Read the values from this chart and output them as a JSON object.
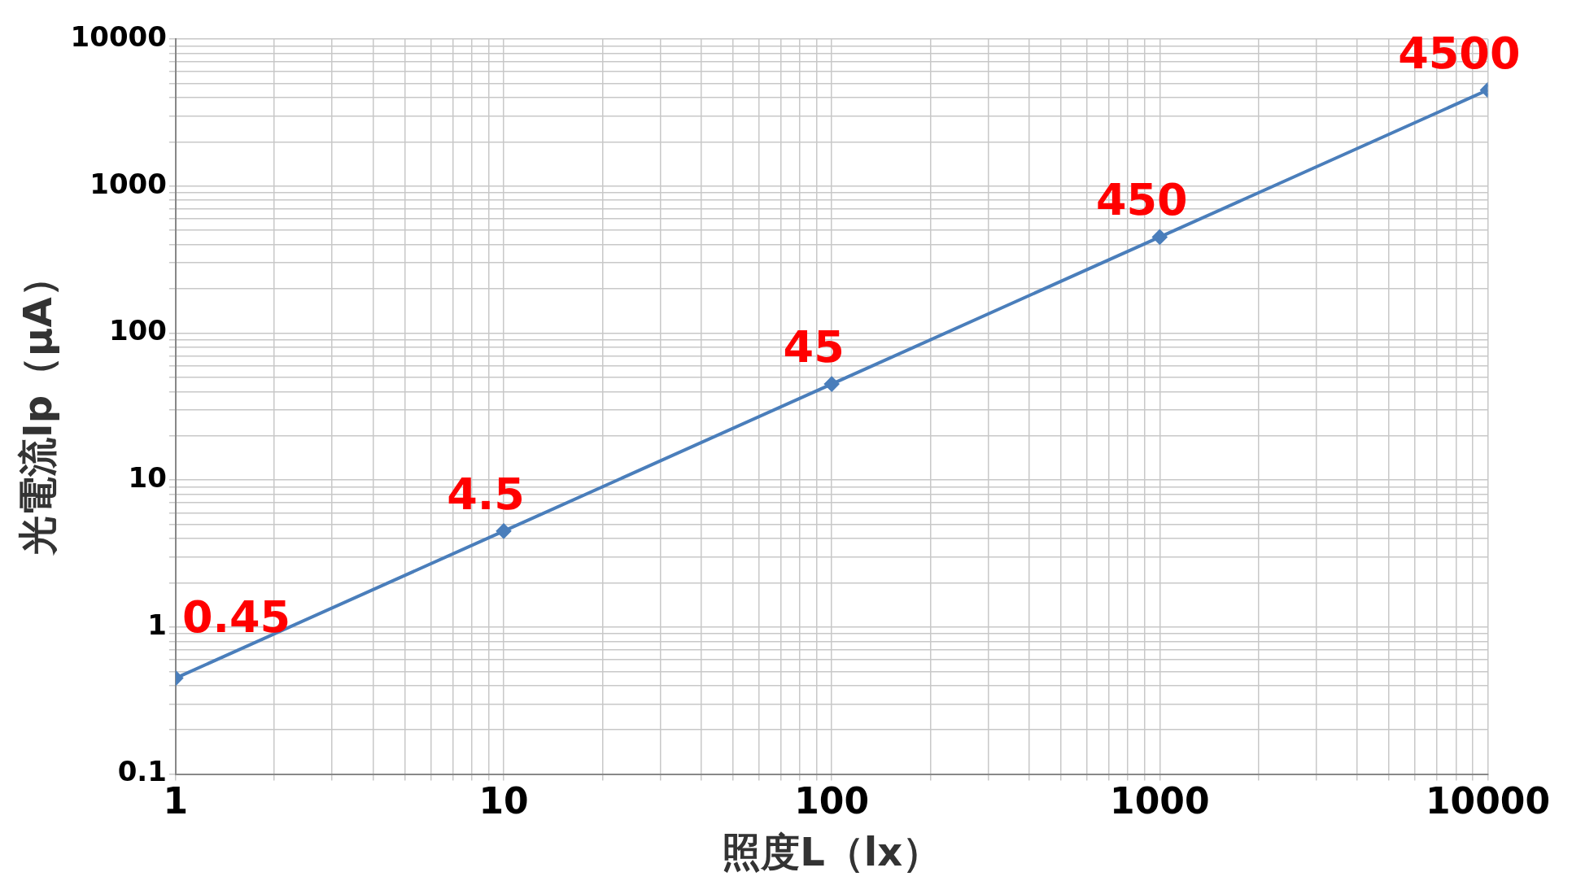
{
  "chart_data": {
    "type": "line",
    "xlabel": "照度L（lx）",
    "ylabel": "光電流Ip（μA）",
    "x": [
      1,
      10,
      100,
      1000,
      10000
    ],
    "series": [
      {
        "color": "#4a7ebb",
        "values": [
          0.45,
          4.5,
          45,
          450,
          4500
        ]
      }
    ],
    "log": "xy",
    "xlim": [
      1,
      10000
    ],
    "ylim": [
      0.1,
      10000
    ],
    "xticks": [
      1,
      10,
      100,
      1000,
      10000
    ],
    "yticks": [
      0.1,
      1,
      10,
      100,
      1000,
      10000
    ],
    "grid": true,
    "marker": "diamond",
    "line_style": "solid",
    "data_labels": true,
    "legend": false
  }
}
